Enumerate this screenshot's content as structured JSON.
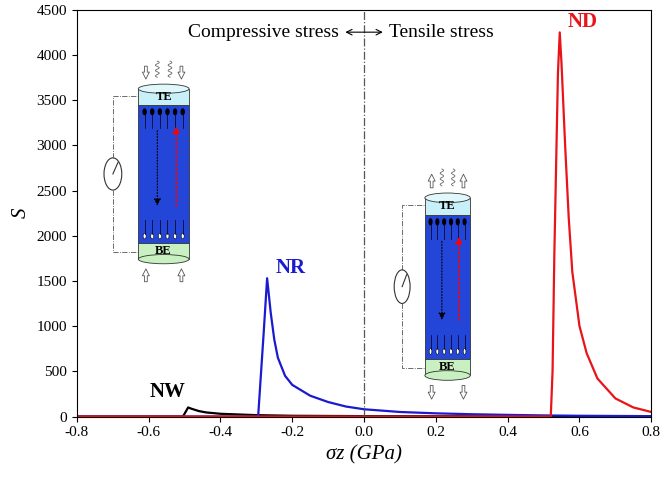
{
  "chart_data": {
    "type": "line",
    "x_label": "σz (GPa)",
    "y_label": "S",
    "annotations": [
      "Compressive stress",
      "Tensile stress"
    ],
    "inset_labels": [
      "TE",
      "BE"
    ],
    "divider_x": 0,
    "series": [
      {
        "name": "NW",
        "color": "#000000",
        "x": [
          -0.8,
          -0.6,
          -0.52,
          -0.505,
          -0.5,
          -0.49,
          -0.48,
          -0.46,
          -0.44,
          -0.4,
          -0.3,
          -0.2,
          0,
          0.4,
          0.8
        ],
        "values": [
          0,
          0,
          0,
          0,
          30,
          100,
          85,
          60,
          45,
          30,
          15,
          8,
          4,
          2,
          1
        ]
      },
      {
        "name": "NR",
        "color": "#1a1ad0",
        "x": [
          -0.8,
          -0.5,
          -0.3,
          -0.295,
          -0.29,
          -0.28,
          -0.27,
          -0.26,
          -0.25,
          -0.24,
          -0.22,
          -0.2,
          -0.15,
          -0.1,
          -0.05,
          0,
          0.1,
          0.2,
          0.3,
          0.4,
          0.5,
          0.6,
          0.8
        ],
        "values": [
          0,
          0,
          0,
          0,
          300,
          900,
          1530,
          1150,
          850,
          650,
          450,
          350,
          230,
          160,
          110,
          80,
          50,
          35,
          25,
          18,
          12,
          8,
          4
        ]
      },
      {
        "name": "ND",
        "color": "#e8141a",
        "x": [
          -0.8,
          0,
          0.3,
          0.5,
          0.52,
          0.525,
          0.53,
          0.54,
          0.545,
          0.55,
          0.56,
          0.57,
          0.58,
          0.6,
          0.62,
          0.65,
          0.7,
          0.75,
          0.8
        ],
        "values": [
          0,
          0,
          0,
          0,
          0,
          500,
          1800,
          3800,
          4250,
          3900,
          3000,
          2200,
          1600,
          1000,
          700,
          420,
          200,
          100,
          50
        ]
      }
    ],
    "xlim": [
      -0.8,
      0.8
    ],
    "xticks": [
      -0.8,
      -0.6,
      -0.4,
      -0.2,
      0.0,
      0.2,
      0.4,
      0.6,
      0.8
    ],
    "ylim": [
      0,
      4500
    ],
    "yticks": [
      0,
      500,
      1000,
      1500,
      2000,
      2500,
      3000,
      3500,
      4000,
      4500
    ]
  }
}
